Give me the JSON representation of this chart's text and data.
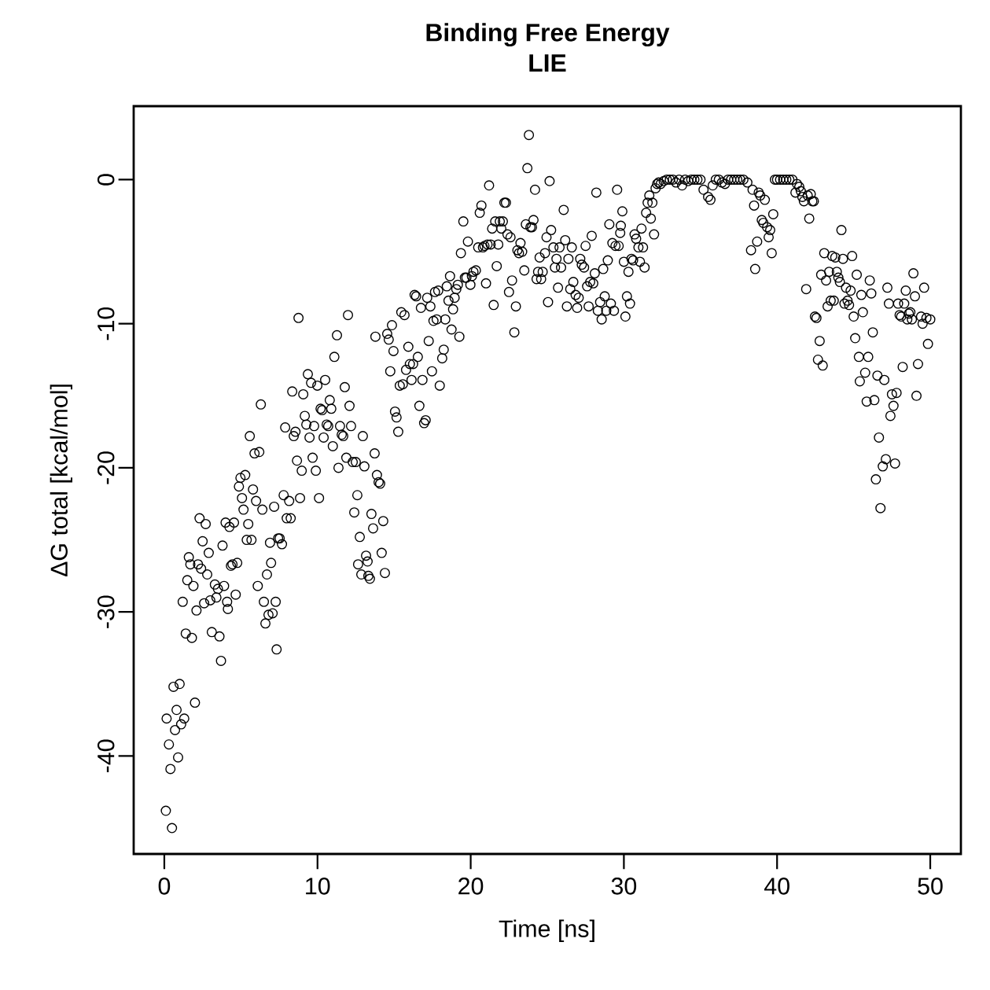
{
  "chart_data": {
    "type": "scatter",
    "title": "Binding Free Energy",
    "subtitle": "LIE",
    "xlabel": "Time [ns]",
    "ylabel": "ΔG total [kcal/mol]",
    "xlim": [
      -2,
      52
    ],
    "ylim": [
      -46.8,
      5.1
    ],
    "xticks": [
      0,
      10,
      20,
      30,
      40,
      50
    ],
    "yticks": [
      -40,
      -30,
      -20,
      -10,
      0
    ],
    "grid": false,
    "marker": "circle",
    "series": [
      {
        "color": "#000000",
        "x": [
          0.1,
          0.5,
          0.15,
          0.3,
          0.4,
          0.6,
          0.7,
          0.8,
          0.9,
          1.0,
          1.1,
          1.3,
          1.2,
          1.4,
          1.5,
          1.6,
          1.7,
          1.8,
          1.9,
          2.0,
          2.1,
          2.2,
          2.3,
          2.4,
          2.5,
          2.6,
          2.7,
          2.8,
          2.9,
          3.0,
          3.1,
          3.3,
          3.4,
          3.5,
          3.6,
          3.7,
          3.8,
          3.9,
          4.0,
          4.1,
          4.15,
          4.25,
          4.35,
          4.45,
          4.55,
          4.66,
          4.76,
          4.87,
          4.97,
          5.07,
          5.17,
          5.28,
          5.38,
          5.48,
          5.58,
          5.69,
          5.79,
          5.89,
          5.99,
          6.1,
          6.2,
          6.3,
          6.4,
          6.5,
          6.6,
          6.7,
          6.8,
          6.9,
          6.97,
          7.07,
          7.17,
          7.27,
          7.33,
          7.43,
          7.53,
          7.68,
          7.79,
          7.89,
          7.99,
          8.15,
          8.25,
          8.35,
          8.45,
          8.56,
          8.66,
          8.76,
          8.86,
          8.97,
          9.07,
          9.17,
          9.27,
          9.37,
          9.48,
          9.58,
          9.68,
          9.78,
          9.89,
          9.99,
          10.1,
          10.2,
          10.3,
          10.4,
          10.5,
          10.6,
          10.7,
          10.8,
          10.9,
          11.0,
          11.1,
          11.27,
          11.37,
          11.47,
          11.58,
          11.68,
          11.78,
          11.88,
          11.99,
          12.09,
          12.19,
          12.3,
          12.4,
          12.5,
          12.6,
          12.65,
          12.76,
          12.86,
          12.96,
          13.06,
          13.17,
          13.27,
          13.32,
          13.42,
          13.52,
          13.63,
          13.73,
          13.78,
          13.88,
          13.99,
          14.09,
          14.19,
          14.29,
          14.4,
          14.55,
          14.65,
          14.75,
          14.86,
          14.96,
          15.06,
          15.16,
          15.27,
          15.37,
          15.47,
          15.57,
          15.68,
          15.78,
          15.93,
          16.03,
          16.14,
          16.24,
          16.34,
          16.44,
          16.55,
          16.65,
          16.75,
          16.85,
          16.96,
          17.06,
          17.16,
          17.26,
          17.37,
          17.47,
          17.57,
          17.67,
          17.78,
          17.88,
          17.98,
          18.14,
          18.24,
          18.34,
          18.44,
          18.55,
          18.65,
          18.75,
          18.85,
          18.95,
          19.06,
          19.16,
          19.26,
          19.36,
          19.52,
          19.62,
          19.72,
          19.82,
          19.98,
          20.08,
          20.18,
          20.34,
          20.49,
          20.59,
          20.7,
          20.8,
          20.9,
          21.0,
          21.1,
          21.2,
          21.3,
          21.4,
          21.5,
          21.6,
          21.7,
          21.8,
          21.9,
          22.0,
          22.1,
          22.2,
          22.3,
          22.4,
          22.5,
          22.6,
          22.7,
          22.85,
          22.95,
          23.05,
          23.15,
          23.25,
          23.36,
          23.5,
          23.6,
          23.7,
          23.8,
          23.9,
          24.0,
          24.1,
          24.2,
          24.3,
          24.4,
          24.5,
          24.6,
          24.7,
          24.85,
          24.95,
          25.05,
          25.15,
          25.25,
          25.4,
          25.5,
          25.6,
          25.7,
          25.8,
          25.9,
          26.07,
          26.17,
          26.28,
          26.38,
          26.5,
          26.6,
          26.7,
          26.85,
          26.95,
          27.05,
          27.15,
          27.25,
          27.4,
          27.5,
          27.6,
          27.7,
          27.8,
          27.9,
          28.0,
          28.1,
          28.2,
          28.3,
          28.45,
          28.55,
          28.65,
          28.75,
          28.85,
          28.95,
          29.05,
          29.15,
          29.25,
          29.35,
          29.45,
          29.56,
          29.66,
          29.76,
          29.8,
          29.9,
          30.0,
          30.1,
          30.2,
          30.3,
          30.4,
          30.5,
          30.6,
          30.7,
          30.8,
          30.95,
          31.05,
          31.15,
          31.25,
          31.35,
          31.45,
          31.55,
          31.66,
          31.76,
          31.86,
          31.97,
          32.07,
          32.17,
          32.27,
          32.4,
          32.6,
          32.8,
          33.0,
          33.2,
          33.4,
          33.6,
          33.8,
          34.0,
          34.2,
          34.4,
          34.6,
          34.8,
          35.0,
          35.2,
          35.5,
          35.65,
          35.8,
          36.0,
          36.2,
          36.4,
          36.6,
          36.8,
          37.0,
          37.2,
          37.4,
          37.6,
          37.8,
          38.06,
          38.3,
          38.4,
          38.5,
          38.57,
          38.7,
          38.8,
          38.9,
          39.0,
          39.1,
          39.2,
          39.35,
          39.45,
          39.55,
          39.65,
          39.75,
          39.86,
          40.0,
          40.2,
          40.4,
          40.6,
          40.8,
          41.0,
          41.2,
          41.3,
          41.45,
          41.55,
          41.65,
          41.75,
          41.9,
          42.0,
          42.1,
          42.2,
          42.3,
          42.4,
          42.47,
          42.57,
          42.67,
          42.78,
          42.88,
          42.98,
          43.08,
          43.2,
          43.3,
          43.4,
          43.5,
          43.6,
          43.7,
          43.8,
          43.9,
          44.0,
          44.1,
          44.2,
          44.3,
          44.4,
          44.5,
          44.6,
          44.7,
          44.8,
          44.9,
          45.0,
          45.1,
          45.2,
          45.34,
          45.4,
          45.5,
          45.6,
          45.75,
          45.85,
          45.95,
          46.05,
          46.15,
          46.25,
          46.35,
          46.45,
          46.55,
          46.65,
          46.75,
          46.9,
          47.0,
          47.1,
          47.2,
          47.3,
          47.4,
          47.5,
          47.6,
          47.7,
          47.8,
          47.9,
          48.0,
          48.1,
          48.2,
          48.3,
          48.4,
          48.5,
          48.6,
          48.7,
          48.8,
          48.9,
          49.0,
          49.1,
          49.2,
          49.4,
          49.5,
          49.6,
          49.75,
          49.85,
          50.0
        ],
        "values": [
          -43.8,
          -45.0,
          -37.4,
          -39.2,
          -40.9,
          -35.2,
          -38.2,
          -36.8,
          -40.1,
          -35.0,
          -37.8,
          -37.4,
          -29.3,
          -31.5,
          -27.8,
          -26.2,
          -26.7,
          -31.8,
          -28.2,
          -36.3,
          -29.9,
          -26.7,
          -23.5,
          -27.0,
          -25.1,
          -29.4,
          -23.9,
          -27.4,
          -25.9,
          -29.2,
          -31.4,
          -28.1,
          -29.0,
          -28.4,
          -31.7,
          -33.4,
          -25.4,
          -28.2,
          -23.8,
          -29.3,
          -29.8,
          -24.1,
          -26.8,
          -26.7,
          -23.8,
          -28.8,
          -26.6,
          -21.3,
          -20.7,
          -22.1,
          -22.9,
          -20.5,
          -25.0,
          -23.9,
          -17.8,
          -25.0,
          -21.5,
          -19.0,
          -22.3,
          -28.2,
          -18.9,
          -15.6,
          -22.9,
          -29.3,
          -30.8,
          -27.4,
          -30.2,
          -25.2,
          -26.6,
          -30.1,
          -22.7,
          -29.3,
          -32.6,
          -24.9,
          -24.9,
          -25.3,
          -21.9,
          -17.2,
          -23.5,
          -22.3,
          -23.5,
          -14.7,
          -17.8,
          -17.5,
          -19.5,
          -9.6,
          -22.1,
          -20.2,
          -14.9,
          -16.4,
          -17.0,
          -13.5,
          -17.9,
          -14.1,
          -19.3,
          -17.1,
          -20.2,
          -14.3,
          -22.1,
          -15.9,
          -16.0,
          -17.9,
          -13.9,
          -17.0,
          -17.1,
          -15.3,
          -15.9,
          -18.5,
          -12.3,
          -10.8,
          -20.0,
          -17.1,
          -17.7,
          -17.8,
          -14.4,
          -19.3,
          -9.4,
          -15.7,
          -17.1,
          -19.6,
          -23.1,
          -19.6,
          -21.9,
          -26.7,
          -24.8,
          -27.4,
          -17.8,
          -19.9,
          -26.1,
          -26.5,
          -27.5,
          -27.7,
          -23.2,
          -24.2,
          -19.0,
          -10.9,
          -20.5,
          -21.0,
          -21.1,
          -25.9,
          -23.7,
          -27.3,
          -10.7,
          -11.1,
          -13.3,
          -10.1,
          -11.9,
          -16.1,
          -16.5,
          -17.5,
          -14.3,
          -9.2,
          -14.2,
          -9.4,
          -13.2,
          -11.6,
          -12.8,
          -13.9,
          -12.8,
          -8.0,
          -8.1,
          -12.3,
          -15.7,
          -8.9,
          -13.9,
          -16.9,
          -16.7,
          -8.2,
          -11.2,
          -8.8,
          -13.3,
          -9.8,
          -7.8,
          -9.7,
          -7.7,
          -14.3,
          -12.4,
          -11.8,
          -9.7,
          -7.4,
          -8.4,
          -6.7,
          -10.4,
          -9.0,
          -8.2,
          -7.6,
          -7.3,
          -10.9,
          -5.1,
          -2.9,
          -6.8,
          -6.8,
          -4.3,
          -7.3,
          -6.7,
          -6.4,
          -6.3,
          -4.7,
          -2.3,
          -1.8,
          -4.7,
          -4.6,
          -7.2,
          -4.5,
          -0.4,
          -4.5,
          -3.4,
          -8.7,
          -2.9,
          -6.0,
          -4.5,
          -2.9,
          -3.4,
          -2.9,
          -1.6,
          -1.6,
          -3.8,
          -7.8,
          -4.0,
          -7.0,
          -10.6,
          -8.8,
          -4.9,
          -5.1,
          -4.4,
          -5.0,
          -6.3,
          -3.1,
          0.8,
          3.1,
          -3.3,
          -3.3,
          -2.8,
          -0.7,
          -6.9,
          -6.4,
          -5.4,
          -6.9,
          -6.4,
          -5.1,
          -4.0,
          -8.5,
          -0.1,
          -3.5,
          -4.7,
          -6.1,
          -5.5,
          -7.5,
          -4.7,
          -6.1,
          -2.1,
          -4.2,
          -8.8,
          -5.5,
          -7.6,
          -4.7,
          -7.1,
          -8.0,
          -8.9,
          -8.2,
          -5.5,
          -5.9,
          -6.1,
          -4.6,
          -7.4,
          -8.8,
          -7.1,
          -3.9,
          -7.2,
          -6.5,
          -0.9,
          -9.1,
          -8.5,
          -9.7,
          -6.2,
          -8.1,
          -9.1,
          -5.6,
          -3.1,
          -8.6,
          -4.4,
          -9.1,
          -4.6,
          -0.7,
          -4.6,
          -3.7,
          -3.2,
          -2.2,
          -5.7,
          -9.5,
          -8.1,
          -6.4,
          -8.6,
          -5.5,
          -5.6,
          -3.8,
          -4.1,
          -4.7,
          -5.7,
          -3.4,
          -4.7,
          -6.1,
          -2.3,
          -1.6,
          -1.1,
          -2.7,
          -1.6,
          -3.8,
          -0.6,
          -0.3,
          -0.2,
          -0.3,
          -0.1,
          0,
          0,
          0,
          -0.2,
          0,
          -0.4,
          0,
          -0.1,
          0,
          0,
          0,
          0,
          -0.7,
          -1.2,
          -1.4,
          -0.4,
          0,
          0,
          -0.2,
          -0.3,
          0,
          0,
          0,
          0,
          0,
          0,
          -0.2,
          -4.9,
          -0.7,
          -1.8,
          -6.2,
          -4.3,
          -0.9,
          -1.1,
          -2.8,
          -3.0,
          -1.4,
          -3.3,
          -4.0,
          -3.5,
          -5.1,
          -2.4,
          0,
          0,
          0,
          0,
          0,
          0,
          0,
          -0.9,
          -0.3,
          -0.5,
          -0.8,
          -1.2,
          -1.5,
          -7.6,
          -1.1,
          -2.7,
          -1.0,
          -1.5,
          -1.5,
          -9.5,
          -9.6,
          -12.5,
          -11.2,
          -6.6,
          -12.9,
          -5.1,
          -7.0,
          -8.8,
          -6.4,
          -8.4,
          -5.3,
          -8.4,
          -5.4,
          -6.4,
          -6.8,
          -7.1,
          -3.5,
          -5.5,
          -8.6,
          -7.5,
          -8.4,
          -8.7,
          -7.7,
          -5.3,
          -9.5,
          -11.0,
          -6.6,
          -12.3,
          -14.0,
          -8.0,
          -9.2,
          -13.4,
          -15.4,
          -12.3,
          -7.0,
          -7.9,
          -10.6,
          -15.3,
          -20.8,
          -13.6,
          -17.9,
          -22.8,
          -19.9,
          -13.9,
          -19.4,
          -7.5,
          -8.6,
          -16.4,
          -14.9,
          -15.7,
          -19.7,
          -14.8,
          -8.6,
          -9.4,
          -9.5,
          -13.0,
          -8.6,
          -7.7,
          -9.7,
          -9.3,
          -9.2,
          -9.7,
          -6.5,
          -8.1,
          -15.0,
          -12.8,
          -9.5,
          -10.0,
          -7.5,
          -9.6,
          -11.4,
          -9.7
        ]
      }
    ]
  }
}
